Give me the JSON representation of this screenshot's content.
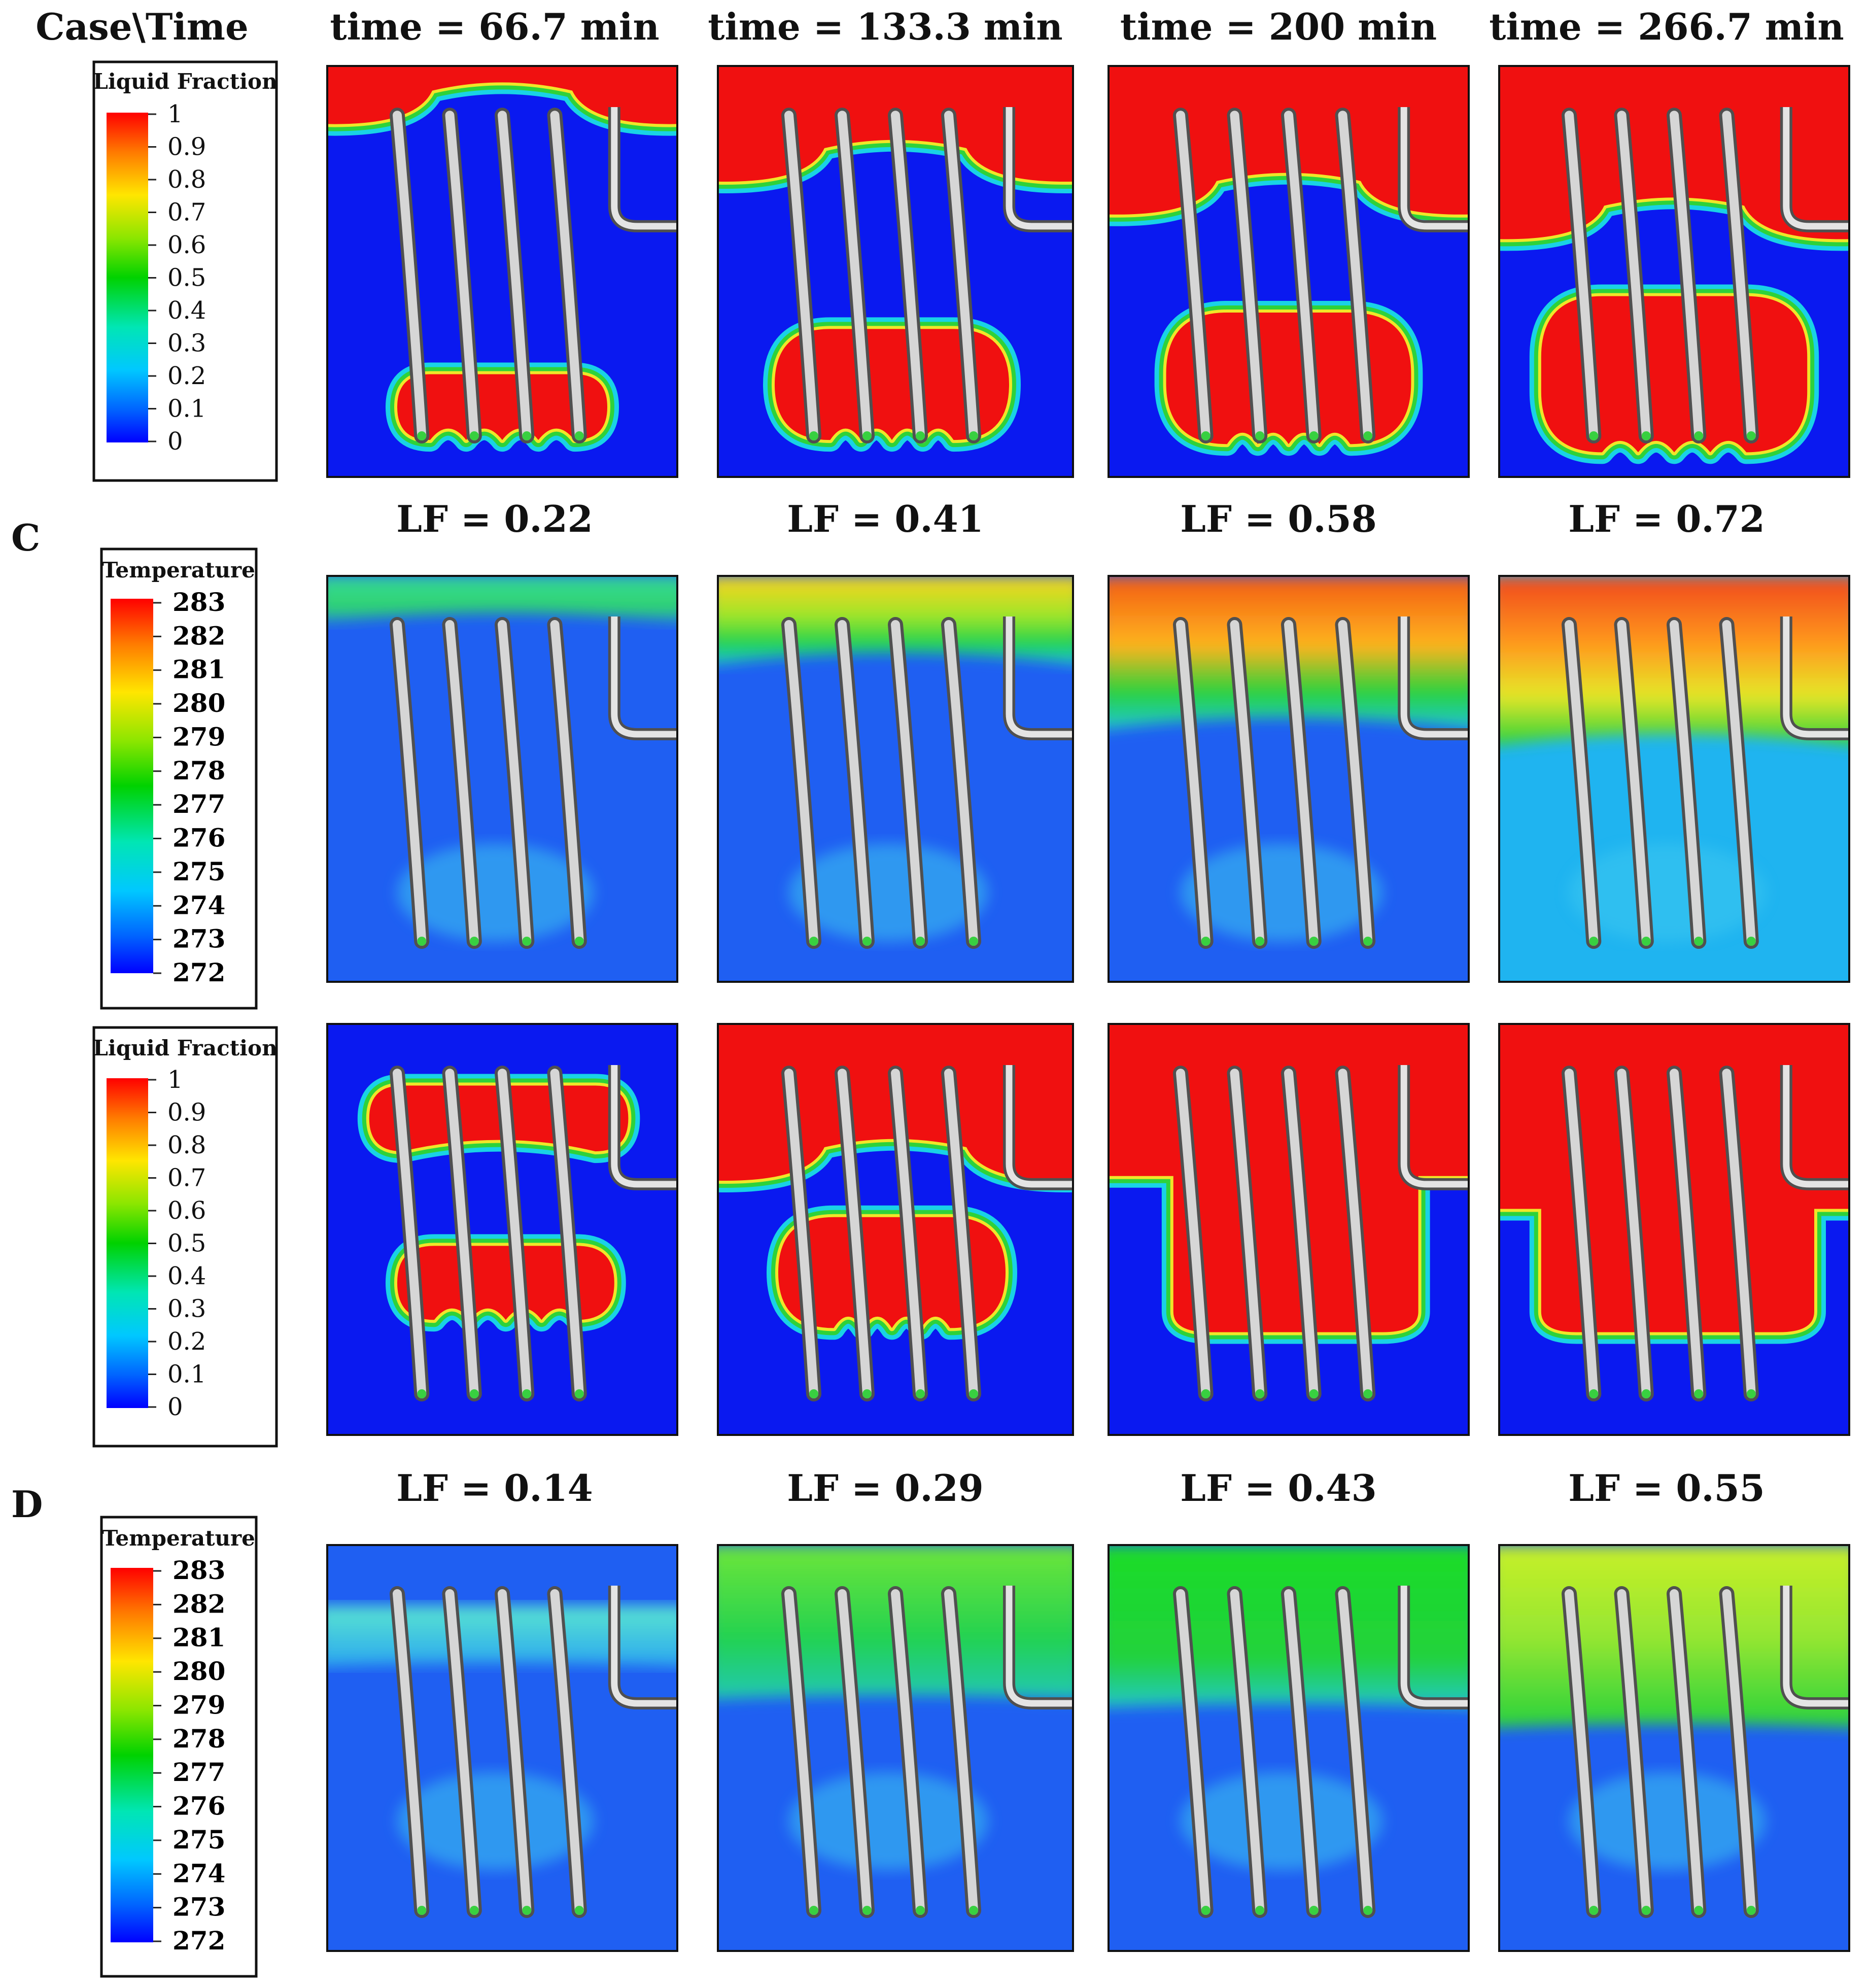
{
  "header": {
    "corner": "Case\\Time",
    "times": [
      "time = 66.7 min",
      "time = 133.3 min",
      "time = 200 min",
      "time = 266.7 min"
    ]
  },
  "cases": [
    {
      "id": "C",
      "lf_values": [
        "LF = 0.22",
        "LF = 0.41",
        "LF = 0.58",
        "LF = 0.72"
      ]
    },
    {
      "id": "D",
      "lf_values": [
        "LF = 0.14",
        "LF = 0.29",
        "LF = 0.43",
        "LF = 0.55"
      ]
    }
  ],
  "legends": {
    "liquid_fraction": {
      "title": "Liquid Fraction",
      "ticks": [
        "1",
        "0.9",
        "0.8",
        "0.7",
        "0.6",
        "0.5",
        "0.4",
        "0.3",
        "0.2",
        "0.1",
        "0"
      ]
    },
    "temperature": {
      "title": "Temperature",
      "ticks": [
        "283",
        "282",
        "281",
        "280",
        "279",
        "278",
        "277",
        "276",
        "275",
        "274",
        "273",
        "272"
      ]
    }
  },
  "colors": {
    "solid": "#0a19f0",
    "cold": "#1f5ff2",
    "liquid": "#f01010",
    "green": "#22d23a",
    "cyan": "#19e0e6",
    "yellow": "#e6f028",
    "orange": "#f07a10",
    "tube": "#b8b8b8"
  }
}
